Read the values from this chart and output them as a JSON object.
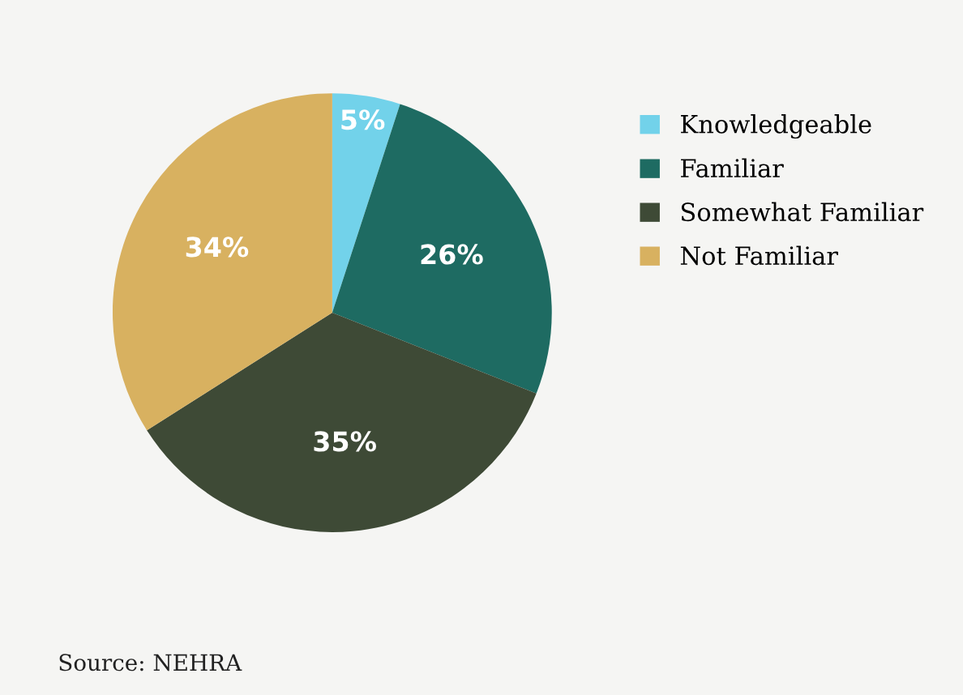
{
  "chart_data": {
    "type": "pie",
    "categories": [
      "Knowledgeable",
      "Familiar",
      "Somewhat Familiar",
      "Not Familiar"
    ],
    "values": [
      5,
      26,
      35,
      34
    ],
    "colors": [
      "#72d2ea",
      "#1e6b62",
      "#3e4a36",
      "#d8b160"
    ],
    "value_labels": [
      "5%",
      "26%",
      "35%",
      "34%"
    ],
    "legend": "right",
    "annotations": [
      "Source: NEHRA"
    ]
  }
}
